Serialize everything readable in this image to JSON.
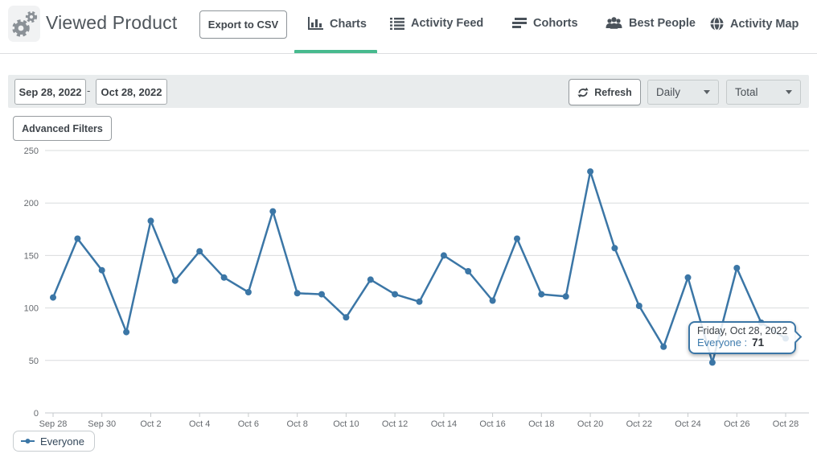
{
  "header": {
    "title": "Viewed Product",
    "export_button_label": "Export to CSV",
    "tabs": [
      {
        "label": "Charts",
        "icon": "bar-chart-icon",
        "active": true
      },
      {
        "label": "Activity Feed",
        "icon": "list-icon",
        "active": false
      },
      {
        "label": "Cohorts",
        "icon": "stacked-bars-icon",
        "active": false
      },
      {
        "label": "Best People",
        "icon": "people-icon",
        "active": false
      },
      {
        "label": "Activity Map",
        "icon": "globe-icon",
        "active": false
      }
    ]
  },
  "toolbar": {
    "date_start": "Sep 28, 2022",
    "date_separator": "-",
    "date_end": "Oct 28, 2022",
    "refresh_label": "Refresh",
    "interval_dropdown_value": "Daily",
    "metric_dropdown_value": "Total",
    "advanced_filters_label": "Advanced Filters"
  },
  "chart_data": {
    "type": "line",
    "title": "",
    "xlabel": "",
    "ylabel": "",
    "x": [
      "Sep 28",
      "Sep 29",
      "Sep 30",
      "Oct 1",
      "Oct 2",
      "Oct 3",
      "Oct 4",
      "Oct 5",
      "Oct 6",
      "Oct 7",
      "Oct 8",
      "Oct 9",
      "Oct 10",
      "Oct 11",
      "Oct 12",
      "Oct 13",
      "Oct 14",
      "Oct 15",
      "Oct 16",
      "Oct 17",
      "Oct 18",
      "Oct 19",
      "Oct 20",
      "Oct 21",
      "Oct 22",
      "Oct 23",
      "Oct 24",
      "Oct 25",
      "Oct 26",
      "Oct 27",
      "Oct 28"
    ],
    "xtick_every": 2,
    "series": [
      {
        "name": "Everyone",
        "color": "#3b76a6",
        "values": [
          110,
          166,
          136,
          77,
          183,
          126,
          154,
          129,
          115,
          192,
          114,
          113,
          91,
          127,
          113,
          106,
          150,
          135,
          107,
          166,
          113,
          111,
          230,
          157,
          102,
          63,
          129,
          48,
          138,
          86,
          71
        ]
      }
    ],
    "ylim": [
      0,
      250
    ],
    "yticks": [
      0,
      50,
      100,
      150,
      200,
      250
    ],
    "grid": true,
    "legend_position": "bottom-left"
  },
  "tooltip": {
    "date_line": "Friday, Oct 28, 2022",
    "series_label": "Everyone :",
    "value": "71"
  },
  "colors": {
    "accent_green": "#47ba8e",
    "series_blue": "#3b76a6",
    "toolbar_bg": "#e9eced"
  }
}
